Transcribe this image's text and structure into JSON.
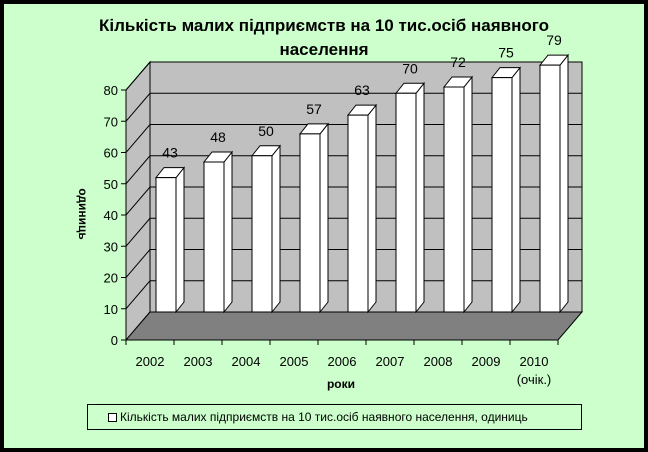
{
  "chart_data": {
    "type": "bar",
    "title": "Кількість малих підприємств на 10 тис.осіб наявного населення",
    "categories": [
      "2002",
      "2003",
      "2004",
      "2005",
      "2006",
      "2007",
      "2008",
      "2009",
      "2010"
    ],
    "category_sublabels": [
      "",
      "",
      "",
      "",
      "",
      "",
      "",
      "",
      "(очік.)"
    ],
    "series": [
      {
        "name": "Кількість малих підприємств на 10 тис.осіб наявного населення, одиниць",
        "values": [
          43,
          48,
          50,
          57,
          63,
          70,
          72,
          75,
          79
        ]
      }
    ],
    "xlabel": "роки",
    "ylabel": "одиниць",
    "ylim": [
      0,
      80
    ],
    "yticks": [
      "0",
      "10",
      "20",
      "30",
      "40",
      "50",
      "60",
      "70",
      "80"
    ],
    "grid": true,
    "three_d": true,
    "legend_position": "bottom",
    "colors": {
      "background": "#ccffcc",
      "wall": "#c0c0c0",
      "floor": "#808080",
      "bar_fill": "#ffffff",
      "bar_stroke": "#000000"
    }
  }
}
